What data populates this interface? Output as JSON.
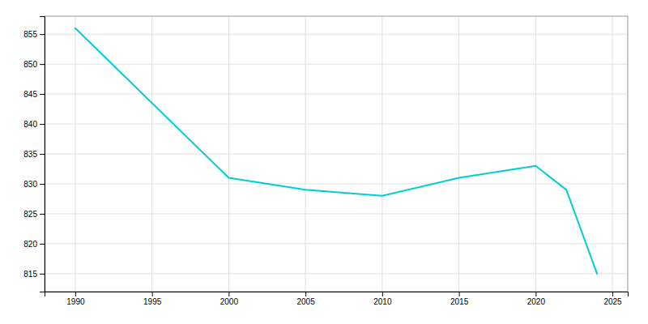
{
  "chart_data": {
    "type": "line",
    "x": [
      1990,
      2000,
      2005,
      2010,
      2015,
      2020,
      2022,
      2024
    ],
    "values": [
      856,
      831,
      829,
      828,
      831,
      833,
      829,
      815
    ],
    "color": "#00CED1",
    "xlim": [
      1988,
      2026
    ],
    "ylim": [
      812,
      858
    ],
    "xticks": [
      1990,
      1995,
      2000,
      2005,
      2010,
      2015,
      2020,
      2025
    ],
    "yticks": [
      815,
      820,
      825,
      830,
      835,
      840,
      845,
      850,
      855
    ],
    "grid": true
  }
}
